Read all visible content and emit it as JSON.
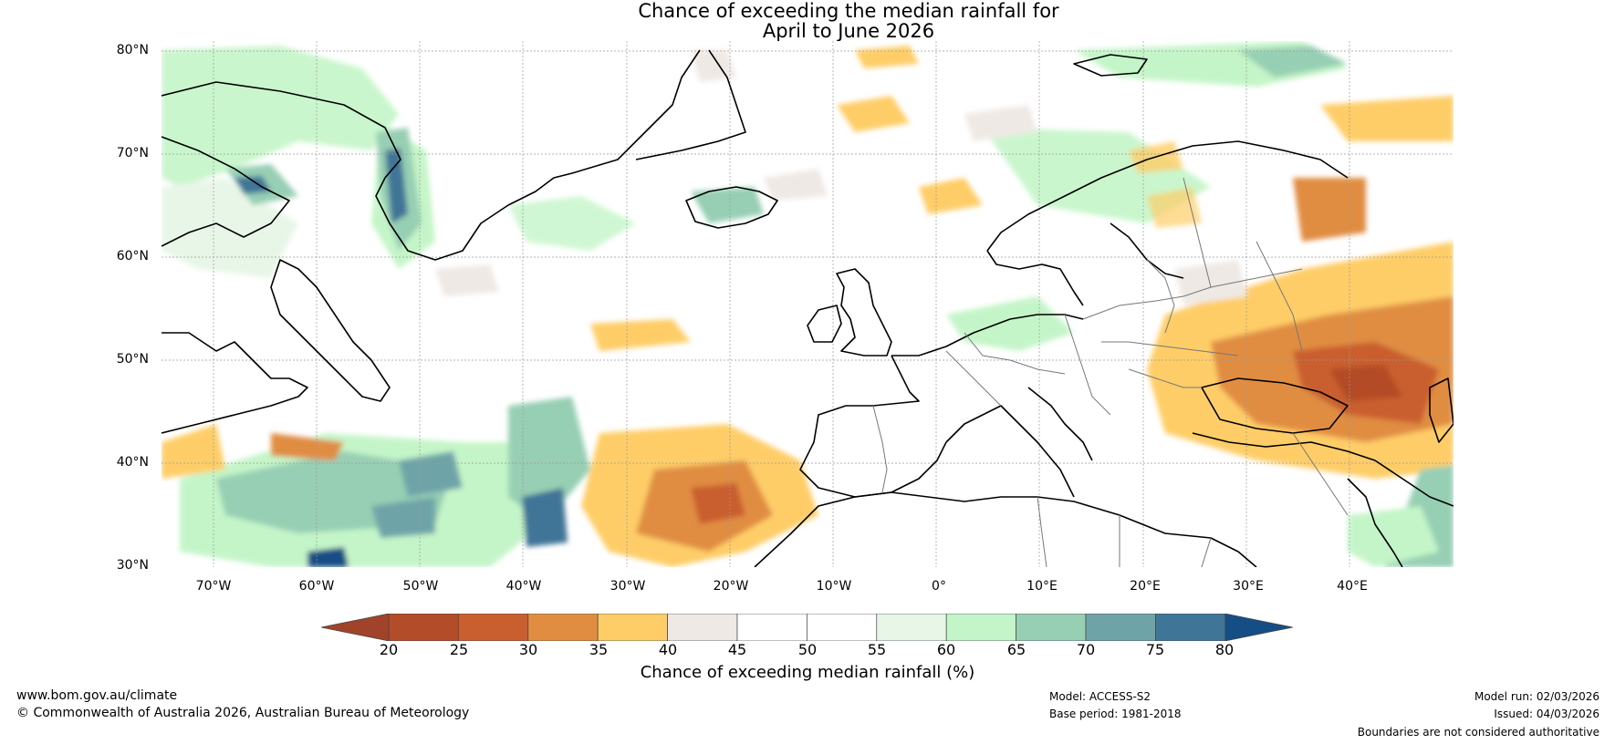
{
  "title": {
    "line1": "Chance of exceeding the median rainfall for",
    "line2": "April to June 2026"
  },
  "map": {
    "region": "North Atlantic and Europe",
    "lat_ticks": [
      "80°N",
      "70°N",
      "60°N",
      "50°N",
      "40°N",
      "30°N"
    ],
    "lon_ticks": [
      "70°W",
      "60°W",
      "50°W",
      "40°W",
      "30°W",
      "20°W",
      "10°W",
      "0°",
      "10°E",
      "20°E",
      "30°E",
      "40°E"
    ],
    "lat_range": [
      30,
      81
    ],
    "lon_range": [
      -75,
      50
    ]
  },
  "colorbar": {
    "title": "Chance of exceeding median rainfall (%)",
    "ticks": [
      "20",
      "25",
      "30",
      "35",
      "40",
      "45",
      "50",
      "55",
      "60",
      "65",
      "70",
      "75",
      "80"
    ],
    "colors": [
      "#a0432a",
      "#b34c28",
      "#c95f2f",
      "#e08d42",
      "#fecd67",
      "#efe9e5",
      "#ffffff",
      "#ffffff",
      "#e8f6e8",
      "#c4f5c8",
      "#97cfb4",
      "#6ea4a8",
      "#3f7597",
      "#154d85"
    ]
  },
  "footer": {
    "website": "www.bom.gov.au/climate",
    "copyright": "© Commonwealth of Australia 2026, Australian Bureau of Meteorology",
    "model": "Model: ACCESS-S2",
    "base_period": "Base period: 1981-2018",
    "model_run": "Model run: 02/03/2026",
    "issued": "Issued: 04/03/2026",
    "disclaimer": "Boundaries are not considered authoritative"
  }
}
